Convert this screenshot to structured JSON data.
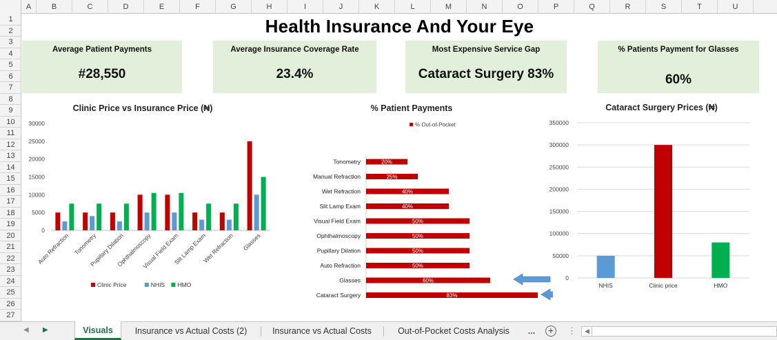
{
  "columns": [
    "A",
    "B",
    "C",
    "D",
    "E",
    "F",
    "G",
    "H",
    "I",
    "J",
    "K",
    "L",
    "M",
    "N",
    "O",
    "P",
    "Q",
    "R",
    "S",
    "T",
    "U"
  ],
  "rows": [
    "1",
    "2",
    "3",
    "4",
    "5",
    "6",
    "7",
    "8",
    "9",
    "10",
    "11",
    "12",
    "13",
    "14",
    "15",
    "16",
    "17",
    "18",
    "19",
    "20",
    "21",
    "22",
    "23",
    "24",
    "25",
    "26",
    "27"
  ],
  "title": "Health Insurance And Your Eye",
  "kpis": [
    {
      "label": "Average Patient Payments",
      "value": "#28,550"
    },
    {
      "label": "Average Insurance Coverage Rate",
      "value": "23.4%"
    },
    {
      "label": "Most Expensive Service Gap",
      "value": "Cataract Surgery 83%"
    },
    {
      "label": "% Patients Payment for Glasses",
      "value": "60%"
    }
  ],
  "chart_data": [
    {
      "type": "bar",
      "title": "Clinic Price vs Insurance Price (₦)",
      "categories": [
        "Auto Refraction",
        "Tonometry",
        "Pupillary Dilation",
        "Ophthalmoscopy",
        "Visual Field Exam",
        "Slit Lamp Exam",
        "Wet Refraction",
        "Glasses"
      ],
      "series": [
        {
          "name": "Clinic Price",
          "color": "#c00000",
          "values": [
            5000,
            5000,
            5000,
            10000,
            10000,
            5000,
            5000,
            25000
          ]
        },
        {
          "name": "NHIS",
          "color": "#5b9bd5",
          "values": [
            2500,
            4000,
            2500,
            5000,
            5000,
            3000,
            3000,
            10000
          ]
        },
        {
          "name": "HMO",
          "color": "#00b050",
          "values": [
            7500,
            7500,
            7500,
            10500,
            10500,
            7500,
            7500,
            15000
          ]
        }
      ],
      "yticks": [
        "30000",
        "25000",
        "20000",
        "15000",
        "10000",
        "5000",
        "0"
      ],
      "ylim": [
        0,
        30000
      ],
      "legend": "bottom"
    },
    {
      "type": "bar",
      "orientation": "horizontal",
      "title": "% Patient Payments",
      "series_name": "% Out-of-Pocket",
      "color": "#c00000",
      "categories": [
        "Tonometry",
        "Manual Refraction",
        "Wet Refraction",
        "Slit Lamp Exam",
        "Visual Field Exam",
        "Ophthalmoscopy",
        "Pupillary Dilation",
        "Auto Refraction",
        "Glasses",
        "Cataract Surgery"
      ],
      "values": [
        20,
        25,
        40,
        40,
        50,
        50,
        50,
        50,
        60,
        83
      ],
      "labels": [
        "20%",
        "25%",
        "40%",
        "40%",
        "50%",
        "50%",
        "50%",
        "50%",
        "60%",
        "83%"
      ],
      "xlim": [
        0,
        100
      ],
      "legend": "top"
    },
    {
      "type": "bar",
      "title": "Cataract Surgery Prices (₦)",
      "categories": [
        "NHIS",
        "Clinic price",
        "HMO"
      ],
      "values": [
        50000,
        300000,
        80000
      ],
      "colors": [
        "#5b9bd5",
        "#c00000",
        "#00b050"
      ],
      "yticks": [
        "350000",
        "300000",
        "250000",
        "200000",
        "150000",
        "100000",
        "50000",
        "0"
      ],
      "ylim": [
        0,
        350000
      ]
    }
  ],
  "tabs": [
    {
      "label": "Visuals",
      "active": true
    },
    {
      "label": "Insurance vs Actual Costs (2)",
      "active": false
    },
    {
      "label": "Insurance vs Actual Costs",
      "active": false
    },
    {
      "label": "Out-of-Pocket Costs Analysis",
      "active": false
    }
  ],
  "tabbar": {
    "more": "...",
    "add": "+",
    "options": "⋮"
  }
}
